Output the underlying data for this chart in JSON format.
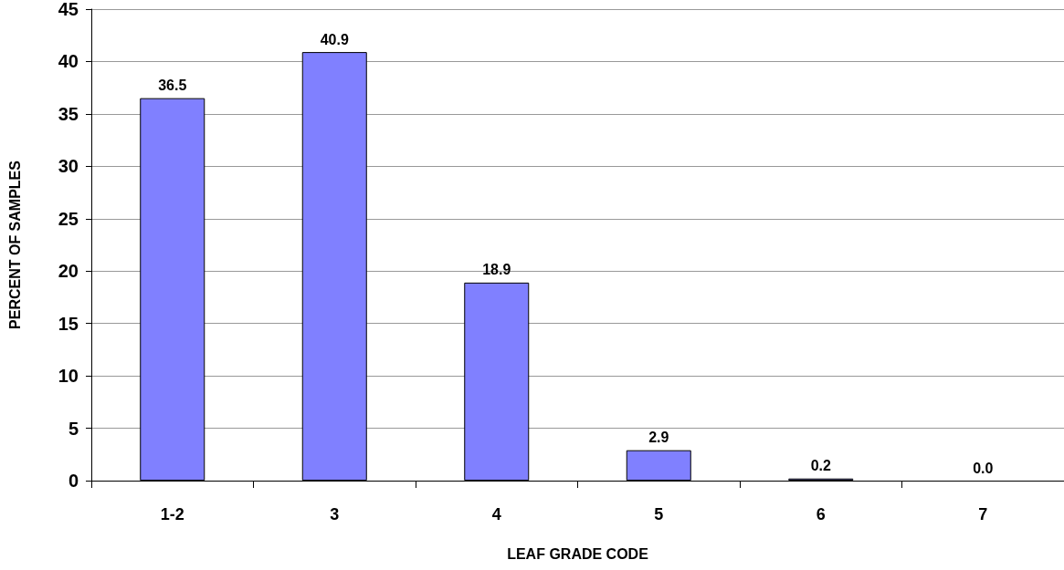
{
  "chart_data": {
    "type": "bar",
    "xlabel": "LEAF GRADE CODE",
    "ylabel": "PERCENT OF SAMPLES",
    "categories": [
      "1-2",
      "3",
      "4",
      "5",
      "6",
      "7"
    ],
    "values": [
      36.5,
      40.9,
      18.9,
      2.9,
      0.2,
      0.0
    ],
    "value_labels": [
      "36.5",
      "40.9",
      "18.9",
      "2.9",
      "0.2",
      "0.0"
    ],
    "color": "#8080ff",
    "ylim": [
      0,
      45
    ],
    "yticks": [
      0,
      5,
      10,
      15,
      20,
      25,
      30,
      35,
      40,
      45
    ],
    "grid": "y"
  }
}
